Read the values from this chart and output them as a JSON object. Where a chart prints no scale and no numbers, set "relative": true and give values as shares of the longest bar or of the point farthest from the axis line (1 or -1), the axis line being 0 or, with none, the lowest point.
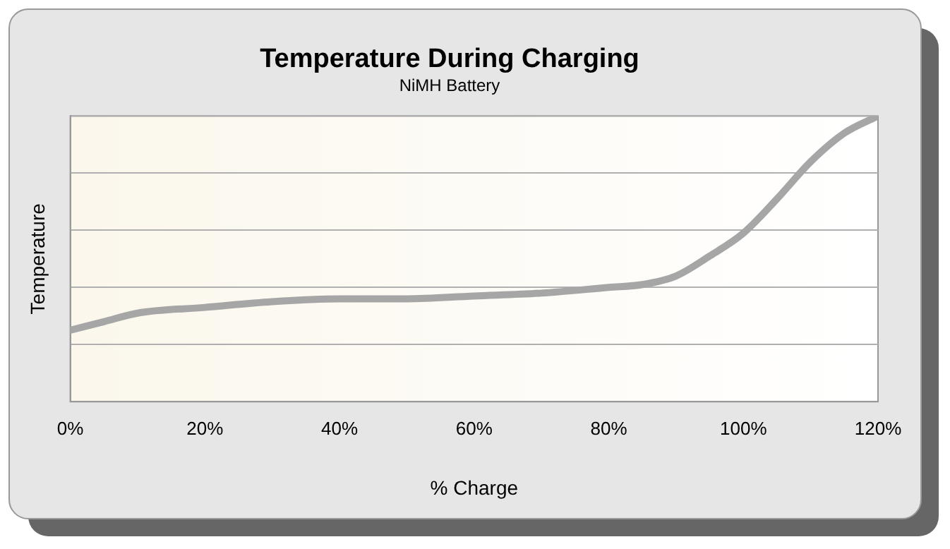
{
  "chart_data": {
    "type": "line",
    "title": "Temperature During Charging",
    "subtitle": "NiMH Battery",
    "xlabel": "% Charge",
    "ylabel": "Temperature",
    "relative": true,
    "grid": "y",
    "legend": false,
    "marker": "none",
    "line_style": "solid",
    "xlim": [
      0,
      120
    ],
    "xticks": [
      {
        "value": 0,
        "label": "0%"
      },
      {
        "value": 20,
        "label": "20%"
      },
      {
        "value": 40,
        "label": "40%"
      },
      {
        "value": 60,
        "label": "60%"
      },
      {
        "value": 80,
        "label": "80%"
      },
      {
        "value": 100,
        "label": "100%"
      },
      {
        "value": 120,
        "label": "120%"
      }
    ],
    "x": [
      0,
      5,
      10,
      20,
      30,
      40,
      50,
      60,
      70,
      80,
      85,
      90,
      95,
      100,
      105,
      110,
      115,
      120
    ],
    "series": [
      {
        "color": "#a6a6a6",
        "values": [
          0.25,
          0.28,
          0.31,
          0.33,
          0.35,
          0.36,
          0.36,
          0.37,
          0.38,
          0.4,
          0.41,
          0.44,
          0.51,
          0.59,
          0.71,
          0.84,
          0.94,
          1
        ]
      }
    ]
  }
}
